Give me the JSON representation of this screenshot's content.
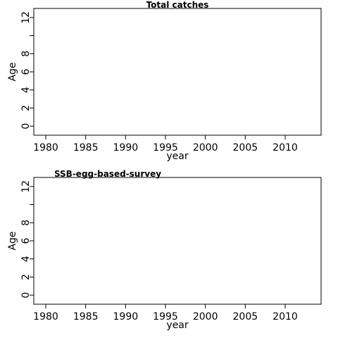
{
  "chart_data": [
    {
      "type": "scatter",
      "title": "Total catches",
      "xlabel": "year",
      "ylabel": "Age",
      "xlim": [
        1978.5,
        2014.5
      ],
      "ylim": [
        -1,
        13
      ],
      "x_ticks": [
        1980,
        1985,
        1990,
        1995,
        2000,
        2005,
        2010
      ],
      "y_ticks": [
        0,
        2,
        4,
        6,
        8,
        12
      ],
      "y_minor_ticks": [
        10
      ],
      "grid": false,
      "series": []
    },
    {
      "type": "scatter",
      "title": "SSB-egg-based-survey",
      "xlabel": "year",
      "ylabel": "Age",
      "xlim": [
        1978.5,
        2014.5
      ],
      "ylim": [
        -1,
        13
      ],
      "x_ticks": [
        1980,
        1985,
        1990,
        1995,
        2000,
        2005,
        2010
      ],
      "y_ticks": [
        0,
        2,
        4,
        6,
        8,
        12
      ],
      "y_minor_ticks": [
        10
      ],
      "grid": false,
      "series": []
    }
  ]
}
